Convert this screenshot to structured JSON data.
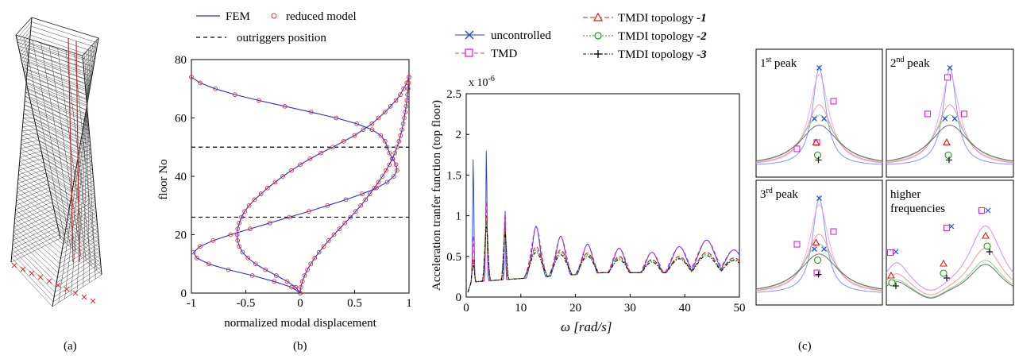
{
  "panel_labels": [
    "(a)",
    "(b)",
    "(c)"
  ],
  "chart_data": [
    {
      "id": "mode-shapes",
      "type": "line",
      "title": "",
      "xlabel": "normalized modal displacement",
      "ylabel": "floor No",
      "xlim": [
        -1,
        1
      ],
      "ylim": [
        0,
        80
      ],
      "xticks": [
        "-1",
        "-0.5",
        "0",
        "0.5",
        "1"
      ],
      "yticks": [
        "0",
        "20",
        "40",
        "60",
        "80"
      ],
      "legend": [
        "FEM",
        "reduced model",
        "outriggers position"
      ],
      "reference_lines": [
        {
          "name": "outriggers position",
          "floor": 50
        },
        {
          "name": "outriggers position",
          "floor": 26
        }
      ],
      "series": [
        {
          "mode": 1,
          "floors": [
            0,
            2,
            4,
            6,
            8,
            10,
            12,
            14,
            16,
            18,
            20,
            22,
            24,
            26,
            28,
            30,
            32,
            34,
            36,
            38,
            40,
            42,
            44,
            46,
            48,
            50,
            52,
            54,
            56,
            58,
            60,
            62,
            64,
            66,
            68,
            70,
            72,
            74
          ],
          "disp": [
            0,
            0.006,
            0.02,
            0.04,
            0.066,
            0.097,
            0.133,
            0.173,
            0.216,
            0.262,
            0.31,
            0.36,
            0.41,
            0.462,
            0.51,
            0.556,
            0.6,
            0.641,
            0.681,
            0.72,
            0.756,
            0.789,
            0.819,
            0.846,
            0.87,
            0.89,
            0.907,
            0.922,
            0.935,
            0.946,
            0.956,
            0.965,
            0.973,
            0.98,
            0.986,
            0.991,
            0.996,
            1.0
          ]
        },
        {
          "mode": 2,
          "floors": [
            0,
            2,
            4,
            6,
            8,
            10,
            12,
            14,
            16,
            18,
            20,
            22,
            24,
            26,
            28,
            30,
            32,
            34,
            36,
            38,
            40,
            42,
            44,
            46,
            48,
            50,
            52,
            54,
            56,
            58,
            60,
            62,
            64,
            66,
            68,
            70,
            72,
            74
          ],
          "disp": [
            0,
            -0.04,
            -0.12,
            -0.22,
            -0.32,
            -0.41,
            -0.48,
            -0.53,
            -0.56,
            -0.575,
            -0.58,
            -0.575,
            -0.56,
            -0.54,
            -0.51,
            -0.47,
            -0.42,
            -0.36,
            -0.3,
            -0.23,
            -0.16,
            -0.08,
            0.0,
            0.09,
            0.19,
            0.3,
            0.4,
            0.5,
            0.58,
            0.66,
            0.72,
            0.78,
            0.83,
            0.88,
            0.92,
            0.95,
            0.98,
            1.0
          ]
        },
        {
          "mode": 3,
          "floors": [
            0,
            2,
            4,
            6,
            8,
            10,
            12,
            14,
            16,
            18,
            20,
            22,
            24,
            26,
            28,
            30,
            32,
            34,
            36,
            38,
            40,
            42,
            44,
            46,
            48,
            50,
            52,
            54,
            56,
            58,
            60,
            62,
            64,
            66,
            68,
            70,
            72,
            74
          ],
          "disp": [
            0,
            -0.08,
            -0.24,
            -0.44,
            -0.66,
            -0.84,
            -0.95,
            -0.98,
            -0.92,
            -0.8,
            -0.64,
            -0.46,
            -0.28,
            -0.1,
            0.08,
            0.25,
            0.42,
            0.57,
            0.7,
            0.8,
            0.86,
            0.89,
            0.88,
            0.85,
            0.82,
            0.8,
            0.78,
            0.74,
            0.66,
            0.52,
            0.33,
            0.1,
            -0.14,
            -0.38,
            -0.6,
            -0.78,
            -0.92,
            -1.0
          ]
        }
      ]
    },
    {
      "id": "transfer-function",
      "type": "line",
      "title": "",
      "xlabel": "ω  [rad/s]",
      "ylabel": "Acceleration tranfer function (top floor)",
      "scale_label": "x 10",
      "scale_exp": "-6",
      "xlim": [
        0,
        50
      ],
      "ylim": [
        0,
        2.5
      ],
      "xticks": [
        "0",
        "10",
        "20",
        "30",
        "40",
        "50"
      ],
      "yticks": [
        "0",
        "0.5",
        "1",
        "1.5",
        "2",
        "2.5"
      ],
      "series": [
        {
          "name": "uncontrolled",
          "color": "#1f3fd6"
        },
        {
          "name": "TMD",
          "color": "#e020e0"
        },
        {
          "name": "TMDI topology",
          "suffix": "-1",
          "color": "#e01818"
        },
        {
          "name": "TMDI topology",
          "suffix": "-2",
          "color": "#12a012"
        },
        {
          "name": "TMDI topology",
          "suffix": "-3",
          "color": "#111111"
        }
      ],
      "peaks": [
        {
          "w": 1.3,
          "u": 1.88,
          "t": 0.78,
          "t1": 0.48,
          "t2": 0.42,
          "t3": 0.4
        },
        {
          "w": 3.7,
          "u": 2.0,
          "t": 1.22,
          "t1": 1.02,
          "t2": 0.92,
          "t3": 0.88
        },
        {
          "w": 7.1,
          "u": 1.16,
          "t": 1.1,
          "t1": 0.88,
          "t2": 0.84,
          "t3": 0.8
        },
        {
          "w": 12.8,
          "u": 0.87,
          "t": 0.86,
          "t1": 0.62,
          "t2": 0.58,
          "t3": 0.55
        },
        {
          "w": 17.3,
          "u": 0.75,
          "t": 0.74,
          "t1": 0.58,
          "t2": 0.55,
          "t3": 0.52
        },
        {
          "w": 22.2,
          "u": 0.65,
          "t": 0.64,
          "t1": 0.54,
          "t2": 0.52,
          "t3": 0.5
        },
        {
          "w": 28.0,
          "u": 0.6,
          "t": 0.6,
          "t1": 0.5,
          "t2": 0.48,
          "t3": 0.46
        },
        {
          "w": 34.0,
          "u": 0.55,
          "t": 0.55,
          "t1": 0.46,
          "t2": 0.45,
          "t3": 0.43
        },
        {
          "w": 39.0,
          "u": 0.62,
          "t": 0.62,
          "t1": 0.5,
          "t2": 0.48,
          "t3": 0.47
        },
        {
          "w": 44.0,
          "u": 0.7,
          "t": 0.7,
          "t1": 0.55,
          "t2": 0.53,
          "t3": 0.51
        },
        {
          "w": 49.0,
          "u": 0.58,
          "t": 0.58,
          "t1": 0.48,
          "t2": 0.46,
          "t3": 0.45
        }
      ]
    }
  ],
  "zoom_panels": [
    {
      "label": "1",
      "label_sup": "st",
      "label_rest": " peak"
    },
    {
      "label": "2",
      "label_sup": "nd",
      "label_rest": " peak"
    },
    {
      "label": "3",
      "label_sup": "rd",
      "label_rest": " peak"
    },
    {
      "label": "higher",
      "label_sup": "",
      "label_rest": "",
      "label2": "frequencies"
    }
  ]
}
